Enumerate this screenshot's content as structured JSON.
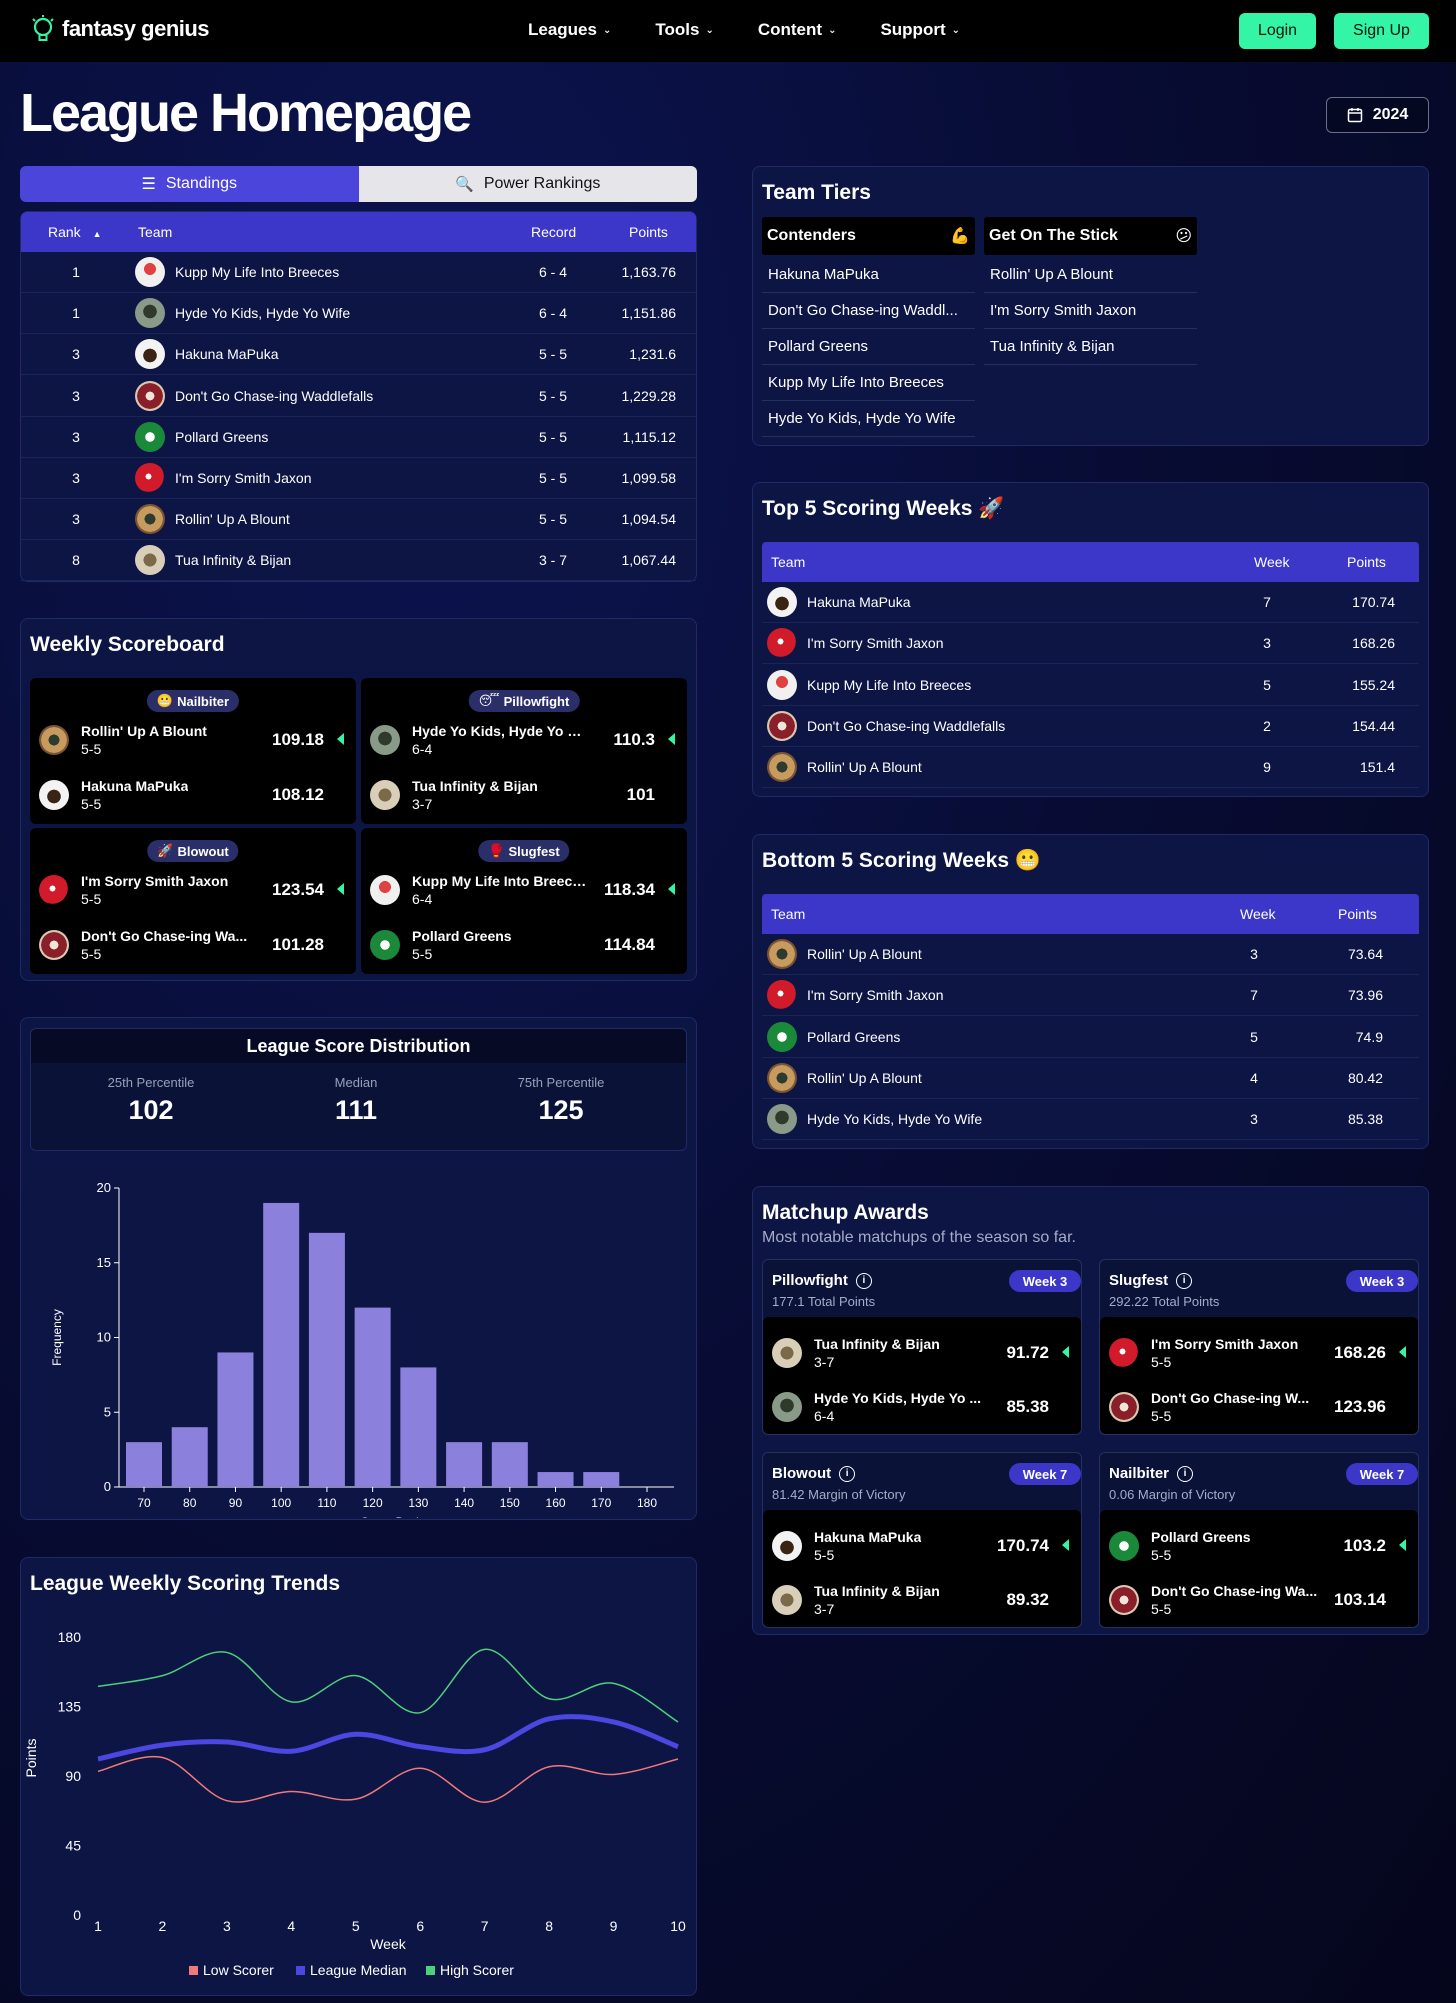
{
  "nav": {
    "logo": "fantasy genius",
    "menu": [
      "Leagues",
      "Tools",
      "Content",
      "Support"
    ],
    "login": "Login",
    "signup": "Sign Up"
  },
  "page": {
    "title": "League Homepage",
    "year": "2024"
  },
  "standings": {
    "tabs": [
      "Standings",
      "Power Rankings"
    ],
    "headers": {
      "rank": "Rank",
      "team": "Team",
      "record": "Record",
      "points": "Points"
    },
    "rows": [
      {
        "rank": "1",
        "team": "Kupp My Life Into Breeces",
        "record": "6 - 4",
        "points": "1,163.76",
        "avatar": "kupp"
      },
      {
        "rank": "1",
        "team": "Hyde Yo Kids, Hyde Yo Wife",
        "record": "6 - 4",
        "points": "1,151.86",
        "avatar": "hyde"
      },
      {
        "rank": "3",
        "team": "Hakuna MaPuka",
        "record": "5 - 5",
        "points": "1,231.6",
        "avatar": "hakuna"
      },
      {
        "rank": "3",
        "team": "Don't Go Chase-ing Waddlefalls",
        "record": "5 - 5",
        "points": "1,229.28",
        "avatar": "chase"
      },
      {
        "rank": "3",
        "team": "Pollard Greens",
        "record": "5 - 5",
        "points": "1,115.12",
        "avatar": "pollard"
      },
      {
        "rank": "3",
        "team": "I'm Sorry Smith Jaxon",
        "record": "5 - 5",
        "points": "1,099.58",
        "avatar": "sorry"
      },
      {
        "rank": "3",
        "team": "Rollin' Up A Blount",
        "record": "5 - 5",
        "points": "1,094.54",
        "avatar": "rollin"
      },
      {
        "rank": "8",
        "team": "Tua Infinity & Bijan",
        "record": "3 - 7",
        "points": "1,067.44",
        "avatar": "tua"
      }
    ]
  },
  "tiers": {
    "title": "Team Tiers",
    "columns": [
      {
        "name": "Contenders",
        "emoji": "💪",
        "teams": [
          "Hakuna MaPuka",
          "Don't Go Chase-ing Waddl...",
          "Pollard Greens",
          "Kupp My Life Into Breeces",
          "Hyde Yo Kids, Hyde Yo Wife"
        ]
      },
      {
        "name": "Get On The Stick",
        "emoji": "😕",
        "teams": [
          "Rollin' Up A Blount",
          "I'm Sorry Smith Jaxon",
          "Tua Infinity & Bijan"
        ]
      }
    ]
  },
  "scoreboard": {
    "title": "Weekly Scoreboard",
    "matchups": [
      {
        "label": "Nailbiter",
        "emoji": "😬",
        "a": {
          "name": "Rollin' Up A Blount",
          "rec": "5-5",
          "score": "109.18",
          "avatar": "rollin"
        },
        "b": {
          "name": "Hakuna MaPuka",
          "rec": "5-5",
          "score": "108.12",
          "avatar": "hakuna"
        }
      },
      {
        "label": "Pillowfight",
        "emoji": "😴",
        "a": {
          "name": "Hyde Yo Kids, Hyde Yo Wife",
          "rec": "6-4",
          "score": "110.3",
          "avatar": "hyde"
        },
        "b": {
          "name": "Tua Infinity & Bijan",
          "rec": "3-7",
          "score": "101",
          "avatar": "tua"
        }
      },
      {
        "label": "Blowout",
        "emoji": "🚀",
        "a": {
          "name": "I'm Sorry Smith Jaxon",
          "rec": "5-5",
          "score": "123.54",
          "avatar": "sorry"
        },
        "b": {
          "name": "Don't Go Chase-ing Wa...",
          "rec": "5-5",
          "score": "101.28",
          "avatar": "chase"
        }
      },
      {
        "label": "Slugfest",
        "emoji": "🥊",
        "a": {
          "name": "Kupp My Life Into Breeces",
          "rec": "6-4",
          "score": "118.34",
          "avatar": "kupp"
        },
        "b": {
          "name": "Pollard Greens",
          "rec": "5-5",
          "score": "114.84",
          "avatar": "pollard"
        }
      }
    ]
  },
  "distribution": {
    "title": "League Score Distribution",
    "stats": [
      {
        "label": "25th Percentile",
        "value": "102"
      },
      {
        "label": "Median",
        "value": "111"
      },
      {
        "label": "75th Percentile",
        "value": "125"
      }
    ]
  },
  "trends": {
    "title": "League Weekly Scoring Trends"
  },
  "top5": {
    "title": "Top 5 Scoring Weeks 🚀",
    "headers": {
      "team": "Team",
      "week": "Week",
      "points": "Points"
    },
    "rows": [
      {
        "team": "Hakuna MaPuka",
        "week": "7",
        "points": "170.74",
        "avatar": "hakuna"
      },
      {
        "team": "I'm Sorry Smith Jaxon",
        "week": "3",
        "points": "168.26",
        "avatar": "sorry"
      },
      {
        "team": "Kupp My Life Into Breeces",
        "week": "5",
        "points": "155.24",
        "avatar": "kupp"
      },
      {
        "team": "Don't Go Chase-ing Waddlefalls",
        "week": "2",
        "points": "154.44",
        "avatar": "chase"
      },
      {
        "team": "Rollin' Up A Blount",
        "week": "9",
        "points": "151.4",
        "avatar": "rollin"
      }
    ]
  },
  "bottom5": {
    "title": "Bottom 5 Scoring Weeks 😬",
    "headers": {
      "team": "Team",
      "week": "Week",
      "points": "Points"
    },
    "rows": [
      {
        "team": "Rollin' Up A Blount",
        "week": "3",
        "points": "73.64",
        "avatar": "rollin"
      },
      {
        "team": "I'm Sorry Smith Jaxon",
        "week": "7",
        "points": "73.96",
        "avatar": "sorry"
      },
      {
        "team": "Pollard Greens",
        "week": "5",
        "points": "74.9",
        "avatar": "pollard"
      },
      {
        "team": "Rollin' Up A Blount",
        "week": "4",
        "points": "80.42",
        "avatar": "rollin"
      },
      {
        "team": "Hyde Yo Kids, Hyde Yo Wife",
        "week": "3",
        "points": "85.38",
        "avatar": "hyde"
      }
    ]
  },
  "awards": {
    "title": "Matchup Awards",
    "subtitle": "Most notable matchups of the season so far.",
    "items": [
      {
        "name": "Pillowfight",
        "sub": "177.1 Total Points",
        "week": "Week 3",
        "a": {
          "name": "Tua Infinity & Bijan",
          "rec": "3-7",
          "score": "91.72",
          "avatar": "tua"
        },
        "b": {
          "name": "Hyde Yo Kids, Hyde Yo ...",
          "rec": "6-4",
          "score": "85.38",
          "avatar": "hyde"
        }
      },
      {
        "name": "Slugfest",
        "sub": "292.22 Total Points",
        "week": "Week 3",
        "a": {
          "name": "I'm Sorry Smith Jaxon",
          "rec": "5-5",
          "score": "168.26",
          "avatar": "sorry"
        },
        "b": {
          "name": "Don't Go Chase-ing W...",
          "rec": "5-5",
          "score": "123.96",
          "avatar": "chase"
        }
      },
      {
        "name": "Blowout",
        "sub": "81.42 Margin of Victory",
        "week": "Week 7",
        "a": {
          "name": "Hakuna MaPuka",
          "rec": "5-5",
          "score": "170.74",
          "avatar": "hakuna"
        },
        "b": {
          "name": "Tua Infinity & Bijan",
          "rec": "3-7",
          "score": "89.32",
          "avatar": "tua"
        }
      },
      {
        "name": "Nailbiter",
        "sub": "0.06 Margin of Victory",
        "week": "Week 7",
        "a": {
          "name": "Pollard Greens",
          "rec": "5-5",
          "score": "103.2",
          "avatar": "pollard"
        },
        "b": {
          "name": "Don't Go Chase-ing Wa...",
          "rec": "5-5",
          "score": "103.14",
          "avatar": "chase"
        }
      }
    ]
  },
  "chart_data": [
    {
      "type": "bar",
      "title": "",
      "xlabel": "Score Bucket",
      "ylabel": "Frequency",
      "categories": [
        "70",
        "80",
        "90",
        "100",
        "110",
        "120",
        "130",
        "140",
        "150",
        "160",
        "170",
        "180"
      ],
      "values": [
        3,
        4,
        9,
        19,
        17,
        12,
        8,
        3,
        3,
        1,
        1,
        0
      ],
      "ylim": [
        0,
        20
      ],
      "yticks": [
        0,
        5,
        10,
        15,
        20
      ],
      "color": "#8b80dc"
    },
    {
      "type": "line",
      "title": "",
      "xlabel": "Week",
      "ylabel": "Points",
      "x": [
        1,
        2,
        3,
        4,
        5,
        6,
        7,
        8,
        9,
        10
      ],
      "ylim": [
        0,
        180
      ],
      "yticks": [
        0,
        45,
        90,
        135,
        180
      ],
      "legend_position": "bottom",
      "series": [
        {
          "name": "Low Scorer",
          "color": "#f07a7a",
          "values": [
            93,
            102,
            74,
            80,
            75,
            95,
            73,
            96,
            91,
            101
          ]
        },
        {
          "name": "League Median",
          "color": "#4b47e0",
          "values": [
            101,
            110,
            112,
            106,
            117,
            109,
            107,
            127,
            125,
            109
          ]
        },
        {
          "name": "High Scorer",
          "color": "#4cd07a",
          "values": [
            148,
            155,
            170,
            138,
            155,
            131,
            172,
            140,
            150,
            125
          ]
        }
      ]
    }
  ]
}
